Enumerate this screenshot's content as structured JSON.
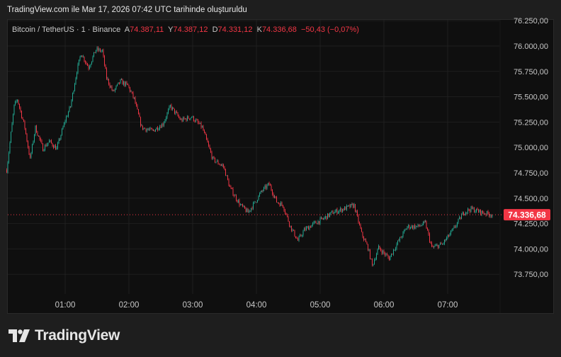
{
  "header": {
    "title": "TradingView.com ile Mar 17, 2026 07:42 UTC tarihinde oluşturuldu"
  },
  "legend": {
    "symbol": "Bitcoin / TetherUS · 1 · Binance",
    "open_label": "A",
    "open": "74.387,11",
    "high_label": "Y",
    "high": "74.387,12",
    "low_label": "D",
    "low": "74.331,12",
    "close_label": "K",
    "close": "74.336,68",
    "change": "−50,43 (−0,07%)"
  },
  "footer": {
    "logo_text": "TradingView"
  },
  "colors": {
    "up": "#22ab94",
    "down": "#f23645",
    "neutral": "#8a8a8a",
    "price_label": "#f23645",
    "background": "#0f0f0f"
  },
  "chart_data": {
    "type": "candlestick",
    "interval": "1 minute",
    "current_price": 74336.68,
    "current_price_label": "74.336,68",
    "ylim": [
      73650,
      76300
    ],
    "y_ticks": [
      73750,
      74000,
      74250,
      74500,
      74750,
      75000,
      75250,
      75500,
      75750,
      76000,
      76250
    ],
    "y_tick_labels": [
      "73.750,00",
      "74.000,00",
      "74.250,00",
      "74.500,00",
      "74.750,00",
      "75.000,00",
      "75.250,00",
      "75.500,00",
      "75.750,00",
      "76.000,00",
      "76.250,00"
    ],
    "x_tick_labels": [
      "01:00",
      "02:00",
      "03:00",
      "04:00",
      "05:00",
      "06:00",
      "07:00"
    ],
    "grid": true,
    "approx_close_path": {
      "times": [
        "00:05",
        "00:12",
        "00:15",
        "00:22",
        "00:27",
        "00:32",
        "00:39",
        "00:45",
        "00:52",
        "01:00",
        "01:05",
        "01:11",
        "01:15",
        "01:22",
        "01:29",
        "01:35",
        "01:39",
        "01:45",
        "01:52",
        "01:59",
        "02:05",
        "02:12",
        "02:22",
        "02:32",
        "02:39",
        "02:49",
        "02:59",
        "03:09",
        "03:19",
        "03:29",
        "03:35",
        "03:45",
        "03:52",
        "03:59",
        "04:05",
        "04:12",
        "04:19",
        "04:25",
        "04:32",
        "04:39",
        "04:45",
        "04:55",
        "05:02",
        "05:12",
        "05:22",
        "05:32",
        "05:39",
        "05:45",
        "05:49",
        "05:55",
        "06:05",
        "06:12",
        "06:22",
        "06:32",
        "06:39",
        "06:45",
        "06:55",
        "07:05",
        "07:15",
        "07:22",
        "07:32",
        "07:42"
      ],
      "closes": [
        74778,
        75407,
        75476,
        75197,
        74883,
        75197,
        74988,
        75060,
        74988,
        75267,
        75407,
        75756,
        75930,
        75790,
        75965,
        75950,
        75686,
        75546,
        75651,
        75610,
        75476,
        75197,
        75162,
        75232,
        75407,
        75267,
        75302,
        75197,
        74883,
        74813,
        74604,
        74430,
        74360,
        74465,
        74569,
        74639,
        74465,
        74430,
        74220,
        74081,
        74186,
        74255,
        74290,
        74360,
        74395,
        74430,
        74150,
        74011,
        73836,
        74011,
        73906,
        74046,
        74220,
        74220,
        74255,
        74011,
        74046,
        74186,
        74360,
        74395,
        74360,
        74337
      ]
    }
  }
}
